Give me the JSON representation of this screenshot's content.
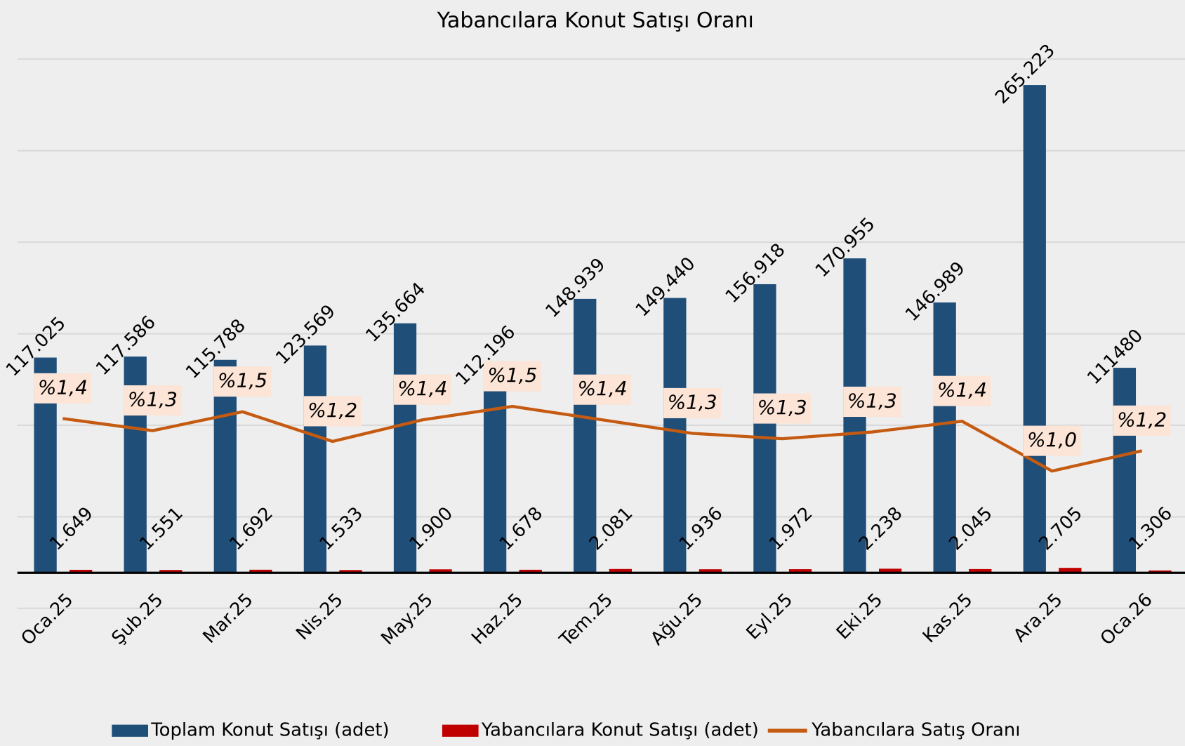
{
  "chart_data": {
    "type": "bar-line",
    "title": "Yabancılara Konut Satışı Oranı",
    "categories": [
      "Oca.25",
      "Şub.25",
      "Mar.25",
      "Nis.25",
      "May.25",
      "Haz.25",
      "Tem.25",
      "Ağu.25",
      "Eyl.25",
      "Eki.25",
      "Kas.25",
      "Ara.25",
      "Oca.26"
    ],
    "series": [
      {
        "name": "Toplam Konut Satışı (adet)",
        "color": "#1f4e79",
        "type": "bar",
        "values": [
          117025,
          117586,
          115788,
          123569,
          135664,
          112196,
          148939,
          149440,
          156918,
          170955,
          146989,
          265223,
          111480
        ],
        "value_labels": [
          "117.025",
          "117.586",
          "115.788",
          "123.569",
          "135.664",
          "112.196",
          "148.939",
          "149.440",
          "156.918",
          "170.955",
          "146.989",
          "265.223",
          "111480"
        ]
      },
      {
        "name": "Yabancılara Konut Satışı (adet)",
        "color": "#c00000",
        "type": "bar",
        "values": [
          1649,
          1551,
          1692,
          1533,
          1900,
          1678,
          2081,
          1936,
          1972,
          2238,
          2045,
          2705,
          1306
        ],
        "value_labels": [
          "1.649",
          "1.551",
          "1.692",
          "1.533",
          "1.900",
          "1.678",
          "2.081",
          "1.936",
          "1.972",
          "2.238",
          "2.045",
          "2.705",
          "1.306"
        ]
      },
      {
        "name": "Yabancılara Satış Oranı",
        "color": "#c55a11",
        "type": "line",
        "axis": "y2",
        "values": [
          1.41,
          1.32,
          1.46,
          1.24,
          1.4,
          1.5,
          1.4,
          1.3,
          1.26,
          1.31,
          1.39,
          1.02,
          1.17
        ],
        "value_labels": [
          "%1,4",
          "%1,3",
          "%1,5",
          "%1,2",
          "%1,4",
          "%1,5",
          "%1,4",
          "%1,3",
          "%1,3",
          "%1,3",
          "%1,4",
          "%1,0",
          "%1,2"
        ]
      }
    ],
    "ylim": [
      -19300,
      279300
    ],
    "y2lim": [
      0,
      4.08
    ],
    "y2ticks": [
      0,
      0.68,
      1.36,
      2.04,
      2.72,
      3.4,
      4.08
    ],
    "grid": true,
    "legend": "bottom"
  }
}
